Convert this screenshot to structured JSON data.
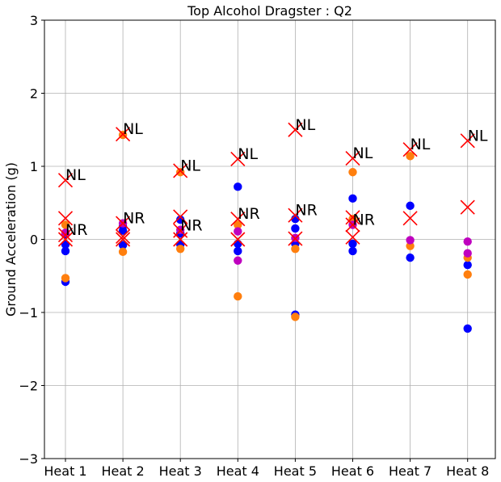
{
  "chart_data": {
    "type": "scatter",
    "title": "Top Alcohol Dragster : Q2",
    "xlabel": "",
    "ylabel": "Ground Acceleration (g)",
    "categories": [
      "Heat 1",
      "Heat 2",
      "Heat 3",
      "Heat 4",
      "Heat 5",
      "Heat 6",
      "Heat 7",
      "Heat 8"
    ],
    "ylim": [
      -3,
      3
    ],
    "yticks": [
      -3,
      -2,
      -1,
      0,
      1,
      2,
      3
    ],
    "ytick_labels": [
      "−3",
      "−2",
      "−1",
      "0",
      "1",
      "2",
      "3"
    ],
    "grid": true,
    "colors": {
      "blue": "#0000ff",
      "orange": "#ff7f0e",
      "magenta": "#bf00bf",
      "red": "#ff0000"
    },
    "series": [
      {
        "marker": "circle",
        "color": "blue",
        "points": [
          [
            0,
            -0.58
          ],
          [
            0,
            -0.16
          ],
          [
            0,
            -0.07
          ],
          [
            0,
            0.07
          ],
          [
            1,
            -0.08
          ],
          [
            1,
            0.12
          ],
          [
            1,
            0.18
          ],
          [
            2,
            -0.07
          ],
          [
            2,
            0.08
          ],
          [
            2,
            0.27
          ],
          [
            3,
            -0.16
          ],
          [
            3,
            -0.06
          ],
          [
            3,
            0.72
          ],
          [
            4,
            -1.03
          ],
          [
            4,
            -0.06
          ],
          [
            4,
            0.15
          ],
          [
            4,
            0.28
          ],
          [
            5,
            -0.16
          ],
          [
            5,
            -0.06
          ],
          [
            5,
            0.56
          ],
          [
            6,
            -0.25
          ],
          [
            6,
            0.46
          ],
          [
            7,
            -1.22
          ],
          [
            7,
            -0.35
          ]
        ]
      },
      {
        "marker": "circle",
        "color": "orange",
        "points": [
          [
            0,
            -0.53
          ],
          [
            0,
            0.2
          ],
          [
            1,
            -0.17
          ],
          [
            1,
            1.43
          ],
          [
            2,
            -0.13
          ],
          [
            2,
            0.92
          ],
          [
            3,
            -0.78
          ],
          [
            3,
            0.2
          ],
          [
            4,
            -1.06
          ],
          [
            4,
            -0.13
          ],
          [
            5,
            0.92
          ],
          [
            5,
            0.28
          ],
          [
            6,
            -0.09
          ],
          [
            6,
            1.14
          ],
          [
            7,
            -0.48
          ],
          [
            7,
            -0.25
          ]
        ]
      },
      {
        "marker": "circle",
        "color": "magenta",
        "points": [
          [
            0,
            0.09
          ],
          [
            1,
            0.22
          ],
          [
            2,
            0.13
          ],
          [
            3,
            -0.29
          ],
          [
            3,
            0.11
          ],
          [
            4,
            0.02
          ],
          [
            5,
            0.2
          ],
          [
            6,
            -0.01
          ],
          [
            7,
            -0.03
          ],
          [
            7,
            -0.19
          ]
        ]
      },
      {
        "marker": "x",
        "color": "red",
        "points": [
          [
            0,
            0.81
          ],
          [
            0,
            0.29
          ],
          [
            0,
            0.06
          ],
          [
            0,
            0.0
          ],
          [
            1,
            1.44
          ],
          [
            1,
            0.22
          ],
          [
            1,
            0.04
          ],
          [
            1,
            0.0
          ],
          [
            2,
            0.94
          ],
          [
            2,
            0.31
          ],
          [
            2,
            0.12
          ],
          [
            2,
            0.0
          ],
          [
            3,
            1.1
          ],
          [
            3,
            0.28
          ],
          [
            3,
            0.0
          ],
          [
            4,
            1.5
          ],
          [
            4,
            0.33
          ],
          [
            4,
            0.01
          ],
          [
            5,
            1.11
          ],
          [
            5,
            0.3
          ],
          [
            5,
            0.2
          ],
          [
            5,
            0.03
          ],
          [
            6,
            1.23
          ],
          [
            6,
            0.29
          ],
          [
            7,
            1.35
          ],
          [
            7,
            0.44
          ]
        ]
      }
    ],
    "annotations": [
      {
        "text": "NL",
        "x": 0,
        "y": 0.81
      },
      {
        "text": "NR",
        "x": 0,
        "y": 0.06
      },
      {
        "text": "NL",
        "x": 1,
        "y": 1.44
      },
      {
        "text": "NR",
        "x": 1,
        "y": 0.22
      },
      {
        "text": "NL",
        "x": 2,
        "y": 0.94
      },
      {
        "text": "NR",
        "x": 2,
        "y": 0.12
      },
      {
        "text": "NL",
        "x": 3,
        "y": 1.1
      },
      {
        "text": "NR",
        "x": 3,
        "y": 0.28
      },
      {
        "text": "NL",
        "x": 4,
        "y": 1.5
      },
      {
        "text": "NR",
        "x": 4,
        "y": 0.33
      },
      {
        "text": "NL",
        "x": 5,
        "y": 1.11
      },
      {
        "text": "NR",
        "x": 5,
        "y": 0.2
      },
      {
        "text": "NL",
        "x": 6,
        "y": 1.23
      },
      {
        "text": "NL",
        "x": 7,
        "y": 1.35
      }
    ]
  }
}
